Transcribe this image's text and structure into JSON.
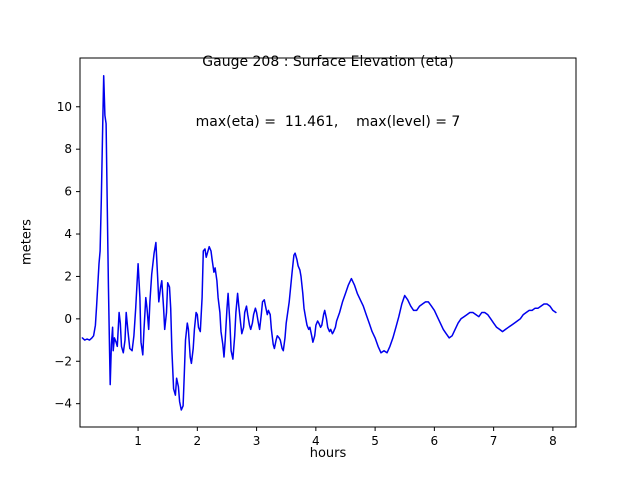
{
  "chart_data": {
    "type": "line",
    "title": "Gauge 208 : Surface Elevation (eta)",
    "subtitle": "max(eta) =  11.461,    max(level) = 7",
    "xlabel": "hours",
    "ylabel": "meters",
    "xlim": [
      0.02,
      8.39
    ],
    "ylim": [
      -5.1,
      12.3
    ],
    "xticks": [
      1,
      2,
      3,
      4,
      5,
      6,
      7,
      8
    ],
    "xtick_labels": [
      "1",
      "2",
      "3",
      "4",
      "5",
      "6",
      "7",
      "8"
    ],
    "yticks": [
      -4,
      -2,
      0,
      2,
      4,
      6,
      8,
      10
    ],
    "ytick_labels": [
      "−4",
      "−2",
      "0",
      "2",
      "4",
      "6",
      "8",
      "10"
    ],
    "line_color": "#0000ee",
    "grid": false,
    "legend": "none",
    "max_eta": 11.461,
    "max_level": 7,
    "series": [
      {
        "name": "eta",
        "points": [
          [
            0.06,
            -0.9
          ],
          [
            0.1,
            -1.0
          ],
          [
            0.14,
            -0.95
          ],
          [
            0.18,
            -1.0
          ],
          [
            0.22,
            -0.9
          ],
          [
            0.25,
            -0.8
          ],
          [
            0.28,
            -0.3
          ],
          [
            0.3,
            0.6
          ],
          [
            0.32,
            1.6
          ],
          [
            0.34,
            2.6
          ],
          [
            0.36,
            3.2
          ],
          [
            0.38,
            5.6
          ],
          [
            0.4,
            8.6
          ],
          [
            0.42,
            11.461
          ],
          [
            0.44,
            9.6
          ],
          [
            0.46,
            9.2
          ],
          [
            0.48,
            5.2
          ],
          [
            0.5,
            1.6
          ],
          [
            0.52,
            -1.6
          ],
          [
            0.53,
            -3.1
          ],
          [
            0.55,
            -1.2
          ],
          [
            0.57,
            -0.4
          ],
          [
            0.58,
            -1.5
          ],
          [
            0.6,
            -0.9
          ],
          [
            0.63,
            -1.1
          ],
          [
            0.65,
            -1.3
          ],
          [
            0.68,
            0.3
          ],
          [
            0.7,
            -0.2
          ],
          [
            0.72,
            -1.3
          ],
          [
            0.75,
            -1.6
          ],
          [
            0.78,
            -1.0
          ],
          [
            0.8,
            0.3
          ],
          [
            0.83,
            -0.6
          ],
          [
            0.86,
            -1.4
          ],
          [
            0.9,
            -1.5
          ],
          [
            0.93,
            -0.8
          ],
          [
            0.96,
            0.5
          ],
          [
            1.0,
            2.6
          ],
          [
            1.03,
            1.0
          ],
          [
            1.05,
            -1.1
          ],
          [
            1.08,
            -1.7
          ],
          [
            1.1,
            -0.5
          ],
          [
            1.13,
            1.0
          ],
          [
            1.15,
            0.5
          ],
          [
            1.18,
            -0.5
          ],
          [
            1.2,
            0.8
          ],
          [
            1.23,
            2.1
          ],
          [
            1.27,
            3.1
          ],
          [
            1.3,
            3.6
          ],
          [
            1.33,
            2.0
          ],
          [
            1.35,
            0.8
          ],
          [
            1.38,
            1.5
          ],
          [
            1.4,
            1.8
          ],
          [
            1.43,
            0.5
          ],
          [
            1.45,
            -0.5
          ],
          [
            1.48,
            0.3
          ],
          [
            1.5,
            1.7
          ],
          [
            1.53,
            1.5
          ],
          [
            1.55,
            0.5
          ],
          [
            1.57,
            -1.5
          ],
          [
            1.6,
            -3.3
          ],
          [
            1.63,
            -3.6
          ],
          [
            1.65,
            -2.8
          ],
          [
            1.68,
            -3.2
          ],
          [
            1.7,
            -3.9
          ],
          [
            1.73,
            -4.3
          ],
          [
            1.76,
            -4.1
          ],
          [
            1.78,
            -2.6
          ],
          [
            1.8,
            -1.0
          ],
          [
            1.83,
            -0.2
          ],
          [
            1.85,
            -0.5
          ],
          [
            1.88,
            -1.8
          ],
          [
            1.9,
            -2.1
          ],
          [
            1.93,
            -1.4
          ],
          [
            1.95,
            -0.5
          ],
          [
            1.98,
            0.3
          ],
          [
            2.0,
            0.2
          ],
          [
            2.02,
            -0.4
          ],
          [
            2.05,
            -0.6
          ],
          [
            2.08,
            1.0
          ],
          [
            2.1,
            3.2
          ],
          [
            2.13,
            3.3
          ],
          [
            2.15,
            2.9
          ],
          [
            2.17,
            3.1
          ],
          [
            2.2,
            3.4
          ],
          [
            2.23,
            3.2
          ],
          [
            2.25,
            2.8
          ],
          [
            2.28,
            2.2
          ],
          [
            2.3,
            2.4
          ],
          [
            2.33,
            1.8
          ],
          [
            2.35,
            1.0
          ],
          [
            2.38,
            0.3
          ],
          [
            2.4,
            -0.6
          ],
          [
            2.43,
            -1.2
          ],
          [
            2.45,
            -1.8
          ],
          [
            2.47,
            -1.0
          ],
          [
            2.5,
            0.5
          ],
          [
            2.52,
            1.2
          ],
          [
            2.55,
            -0.2
          ],
          [
            2.57,
            -1.5
          ],
          [
            2.6,
            -1.9
          ],
          [
            2.63,
            -0.8
          ],
          [
            2.65,
            0.3
          ],
          [
            2.68,
            1.2
          ],
          [
            2.7,
            0.6
          ],
          [
            2.73,
            -0.2
          ],
          [
            2.75,
            -0.7
          ],
          [
            2.78,
            -0.4
          ],
          [
            2.8,
            0.3
          ],
          [
            2.83,
            0.6
          ],
          [
            2.85,
            0.2
          ],
          [
            2.88,
            -0.3
          ],
          [
            2.9,
            -0.5
          ],
          [
            2.93,
            -0.2
          ],
          [
            2.95,
            0.2
          ],
          [
            2.98,
            0.5
          ],
          [
            3.0,
            0.3
          ],
          [
            3.03,
            -0.2
          ],
          [
            3.05,
            -0.5
          ],
          [
            3.08,
            0.2
          ],
          [
            3.1,
            0.8
          ],
          [
            3.13,
            0.9
          ],
          [
            3.15,
            0.6
          ],
          [
            3.18,
            0.2
          ],
          [
            3.2,
            0.4
          ],
          [
            3.23,
            0.2
          ],
          [
            3.25,
            -0.5
          ],
          [
            3.28,
            -1.2
          ],
          [
            3.3,
            -1.4
          ],
          [
            3.33,
            -1.0
          ],
          [
            3.35,
            -0.8
          ],
          [
            3.38,
            -0.9
          ],
          [
            3.4,
            -1.0
          ],
          [
            3.43,
            -1.4
          ],
          [
            3.45,
            -1.5
          ],
          [
            3.48,
            -0.9
          ],
          [
            3.5,
            -0.2
          ],
          [
            3.55,
            0.8
          ],
          [
            3.6,
            2.2
          ],
          [
            3.63,
            3.0
          ],
          [
            3.65,
            3.1
          ],
          [
            3.68,
            2.8
          ],
          [
            3.7,
            2.5
          ],
          [
            3.73,
            2.3
          ],
          [
            3.75,
            2.0
          ],
          [
            3.78,
            1.2
          ],
          [
            3.8,
            0.5
          ],
          [
            3.83,
            0.0
          ],
          [
            3.85,
            -0.3
          ],
          [
            3.88,
            -0.5
          ],
          [
            3.9,
            -0.4
          ],
          [
            3.93,
            -0.8
          ],
          [
            3.95,
            -1.1
          ],
          [
            3.98,
            -0.8
          ],
          [
            4.0,
            -0.3
          ],
          [
            4.03,
            -0.1
          ],
          [
            4.05,
            -0.2
          ],
          [
            4.08,
            -0.4
          ],
          [
            4.1,
            -0.3
          ],
          [
            4.13,
            0.2
          ],
          [
            4.15,
            0.4
          ],
          [
            4.18,
            0.0
          ],
          [
            4.2,
            -0.4
          ],
          [
            4.23,
            -0.6
          ],
          [
            4.25,
            -0.5
          ],
          [
            4.28,
            -0.7
          ],
          [
            4.3,
            -0.6
          ],
          [
            4.33,
            -0.4
          ],
          [
            4.35,
            -0.1
          ],
          [
            4.4,
            0.3
          ],
          [
            4.45,
            0.8
          ],
          [
            4.5,
            1.2
          ],
          [
            4.55,
            1.6
          ],
          [
            4.6,
            1.9
          ],
          [
            4.65,
            1.6
          ],
          [
            4.7,
            1.2
          ],
          [
            4.75,
            0.9
          ],
          [
            4.8,
            0.6
          ],
          [
            4.85,
            0.2
          ],
          [
            4.9,
            -0.2
          ],
          [
            4.95,
            -0.6
          ],
          [
            5.0,
            -0.9
          ],
          [
            5.05,
            -1.3
          ],
          [
            5.1,
            -1.6
          ],
          [
            5.15,
            -1.5
          ],
          [
            5.2,
            -1.6
          ],
          [
            5.25,
            -1.3
          ],
          [
            5.3,
            -0.9
          ],
          [
            5.35,
            -0.4
          ],
          [
            5.4,
            0.1
          ],
          [
            5.45,
            0.7
          ],
          [
            5.5,
            1.1
          ],
          [
            5.55,
            0.9
          ],
          [
            5.6,
            0.6
          ],
          [
            5.65,
            0.4
          ],
          [
            5.7,
            0.4
          ],
          [
            5.75,
            0.6
          ],
          [
            5.8,
            0.7
          ],
          [
            5.85,
            0.8
          ],
          [
            5.9,
            0.8
          ],
          [
            5.95,
            0.6
          ],
          [
            6.0,
            0.4
          ],
          [
            6.05,
            0.1
          ],
          [
            6.1,
            -0.2
          ],
          [
            6.15,
            -0.5
          ],
          [
            6.2,
            -0.7
          ],
          [
            6.25,
            -0.9
          ],
          [
            6.3,
            -0.8
          ],
          [
            6.35,
            -0.5
          ],
          [
            6.4,
            -0.2
          ],
          [
            6.45,
            0.0
          ],
          [
            6.5,
            0.1
          ],
          [
            6.55,
            0.2
          ],
          [
            6.6,
            0.3
          ],
          [
            6.65,
            0.3
          ],
          [
            6.7,
            0.2
          ],
          [
            6.75,
            0.1
          ],
          [
            6.8,
            0.3
          ],
          [
            6.85,
            0.3
          ],
          [
            6.9,
            0.2
          ],
          [
            6.95,
            0.0
          ],
          [
            7.0,
            -0.2
          ],
          [
            7.05,
            -0.4
          ],
          [
            7.1,
            -0.5
          ],
          [
            7.15,
            -0.6
          ],
          [
            7.2,
            -0.5
          ],
          [
            7.25,
            -0.4
          ],
          [
            7.3,
            -0.3
          ],
          [
            7.35,
            -0.2
          ],
          [
            7.4,
            -0.1
          ],
          [
            7.45,
            0.0
          ],
          [
            7.5,
            0.2
          ],
          [
            7.55,
            0.3
          ],
          [
            7.6,
            0.4
          ],
          [
            7.65,
            0.4
          ],
          [
            7.7,
            0.5
          ],
          [
            7.75,
            0.5
          ],
          [
            7.8,
            0.6
          ],
          [
            7.85,
            0.7
          ],
          [
            7.9,
            0.7
          ],
          [
            7.95,
            0.6
          ],
          [
            8.0,
            0.4
          ],
          [
            8.05,
            0.3
          ]
        ]
      }
    ]
  }
}
